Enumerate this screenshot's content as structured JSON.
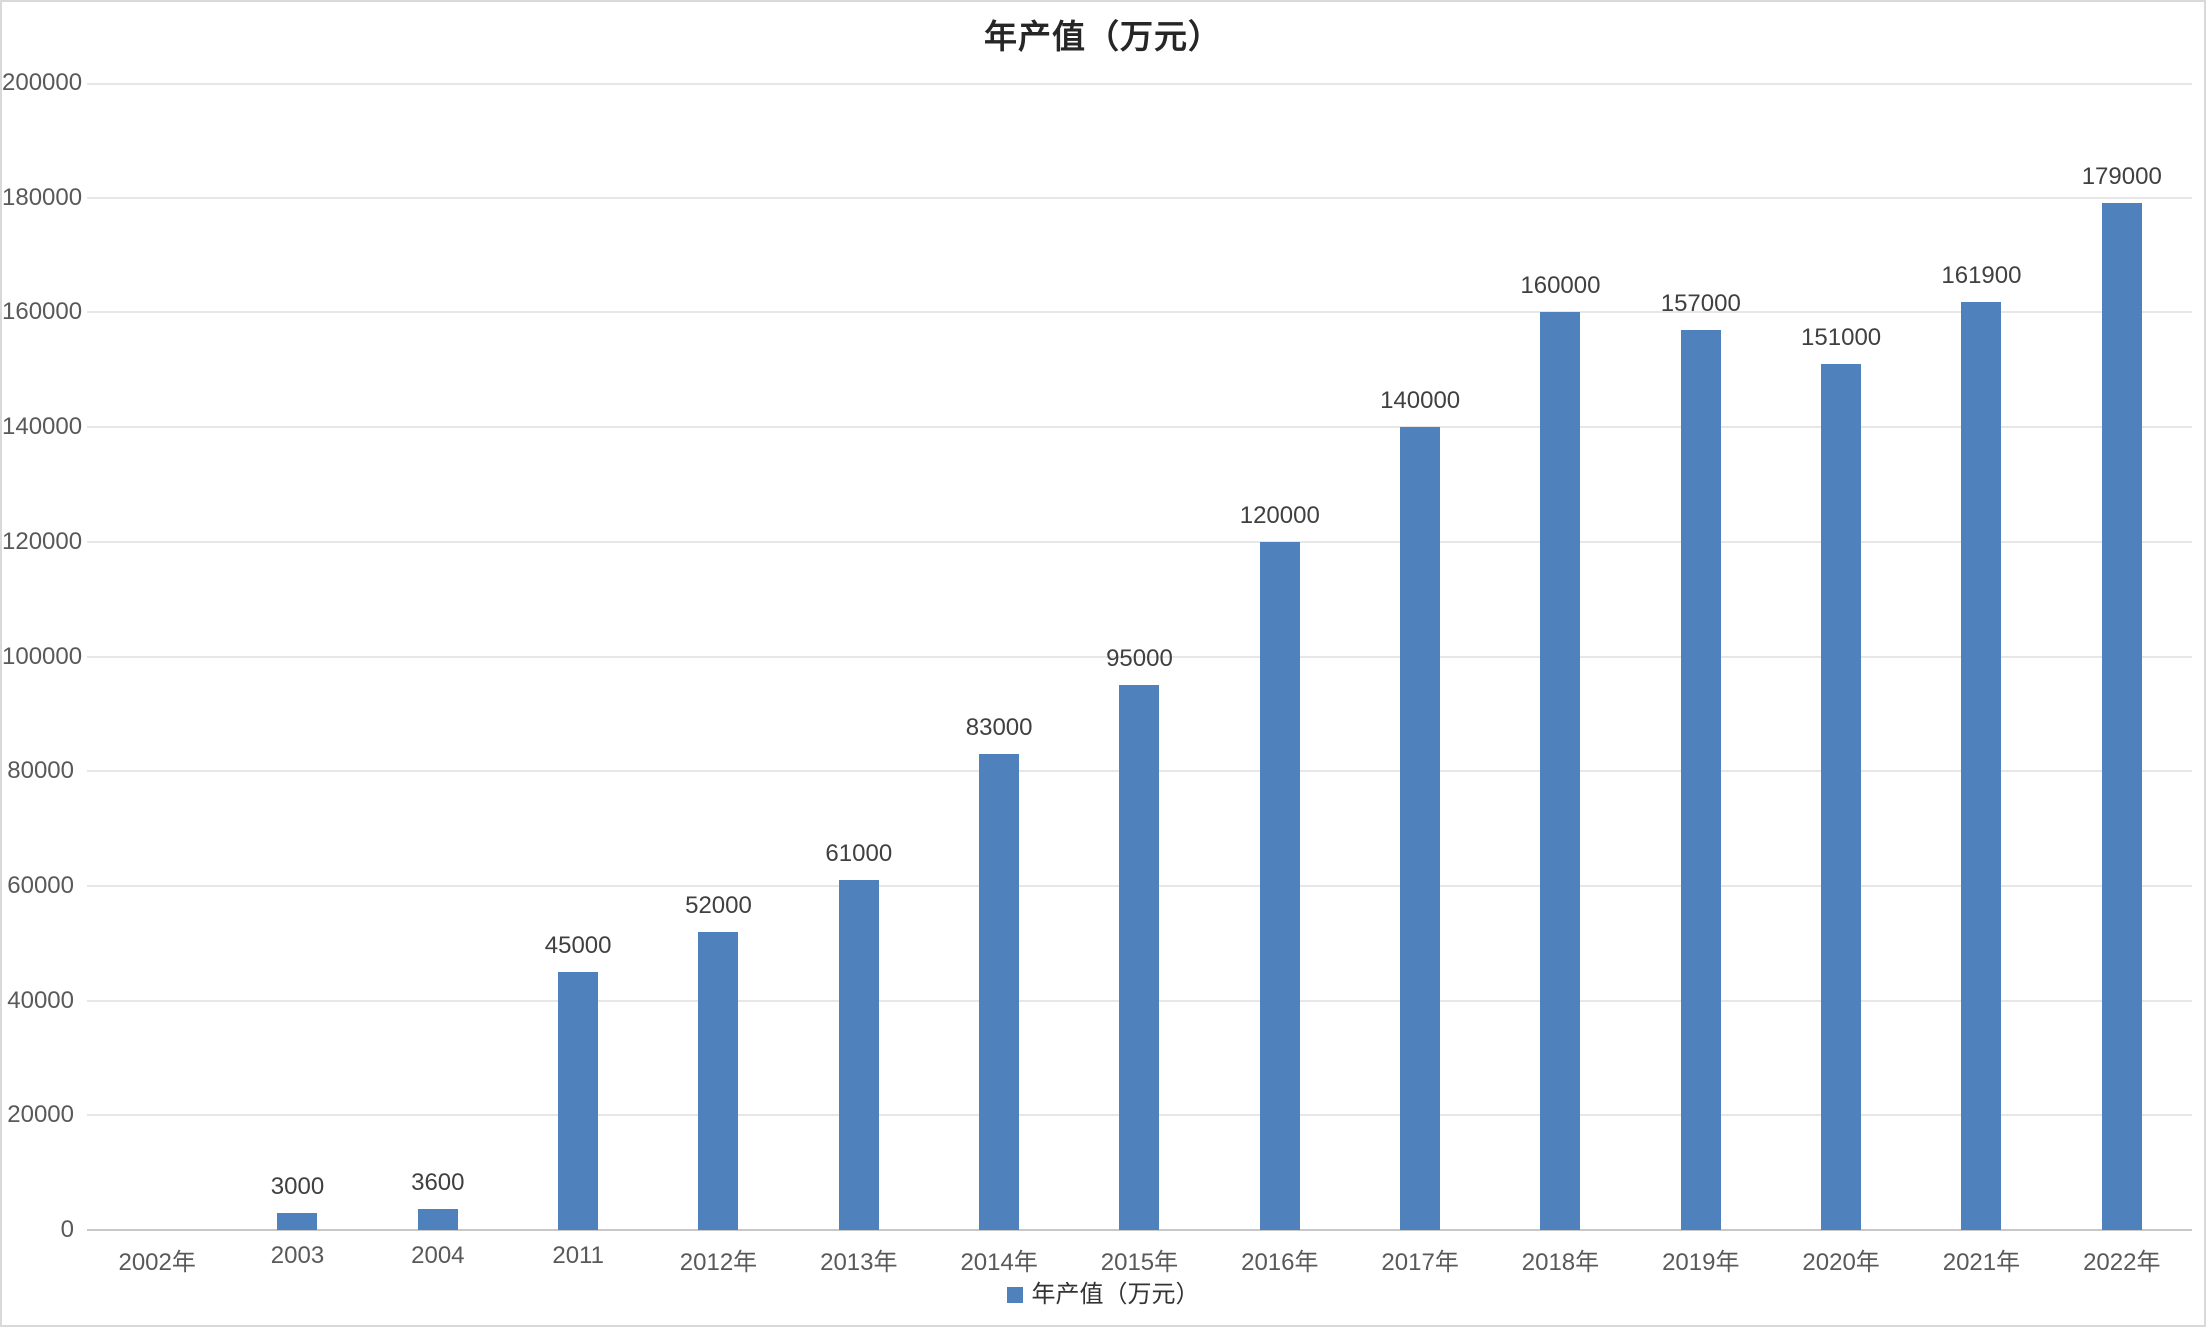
{
  "title": "年产值（万元）",
  "legend": {
    "label": "年产值（万元）",
    "position": "bottom"
  },
  "colors": {
    "bar": "#4F81BD",
    "gridline": "#e7e7e7",
    "axis_line": "#c8c8c8",
    "tick_text": "#595959",
    "value_label_text": "#404040",
    "frame_border": "#d9d9d9"
  },
  "chart_data": {
    "type": "bar",
    "title": "年产值（万元）",
    "categories": [
      "2002年",
      "2003",
      "2004",
      "2011",
      "2012年",
      "2013年",
      "2014年",
      "2015年",
      "2016年",
      "2017年",
      "2018年",
      "2019年",
      "2020年",
      "2021年",
      "2022年"
    ],
    "values": [
      0,
      3000,
      3600,
      45000,
      52000,
      61000,
      83000,
      95000,
      120000,
      140000,
      160000,
      157000,
      151000,
      161900,
      179000
    ],
    "data_labels": [
      "",
      "3000",
      "3600",
      "45000",
      "52000",
      "61000",
      "83000",
      "95000",
      "120000",
      "140000",
      "160000",
      "157000",
      "151000",
      "161900",
      "179000"
    ],
    "series_name": "年产值（万元）",
    "xlabel": "",
    "ylabel": "",
    "ylim": [
      0,
      200000
    ],
    "y_ticks": [
      0,
      20000,
      40000,
      60000,
      80000,
      100000,
      120000,
      140000,
      160000,
      180000,
      200000
    ],
    "y_tick_labels": [
      "0",
      "20000",
      "40000",
      "60000",
      "80000",
      "100000",
      "120000",
      "140000",
      "160000",
      "180000",
      "200000"
    ],
    "grid": true,
    "legend_position": "bottom"
  }
}
